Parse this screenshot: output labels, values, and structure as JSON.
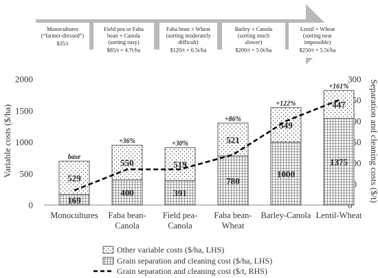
{
  "banner": {
    "boxes": [
      {
        "lines": [
          "Monocultures",
          "(“farmer-dressed”)"
        ],
        "cost": "$35/t"
      },
      {
        "lines": [
          "Field pea or Faba",
          "bean + Canola",
          "(sorting easy)"
        ],
        "cost": "$85/t × 4.7t/ha"
      },
      {
        "lines": [
          "Faba bean + Wheat",
          "(sorting moderately",
          "difficult)"
        ],
        "cost": "$120/t × 6.5t/ha"
      },
      {
        "lines": [
          "Barley + Canola",
          "(sorting much",
          "slower)"
        ],
        "cost": "$200/t × 5.0t/ha"
      },
      {
        "lines": [
          "Lentil + Wheat",
          "(sorting near",
          "impossible)"
        ],
        "cost": "$250/t × 5.5t/ha"
      }
    ]
  },
  "chart_data": {
    "type": "bar",
    "stacked": true,
    "categories": [
      [
        "Monocultures"
      ],
      [
        "Faba bean-",
        "Canola"
      ],
      [
        "Field pea-",
        "Canola"
      ],
      [
        "Faba bean-",
        "Wheat"
      ],
      [
        "Barley-Canola"
      ],
      [
        "Lentil-Wheat"
      ]
    ],
    "series": [
      {
        "name": "Grain separation and cleaning cost ($/ha, LHS)",
        "values": [
          169,
          400,
          391,
          780,
          1000,
          1375
        ],
        "labels": [
          "169",
          "400",
          "391",
          "780",
          "1000",
          "1375"
        ],
        "pattern": "grid"
      },
      {
        "name": "Other variable costs ($/ha, LHS)",
        "values": [
          529,
          550,
          519,
          521,
          549,
          447
        ],
        "labels": [
          "529",
          "550",
          "519",
          "521",
          "549",
          "447"
        ],
        "pattern": "dots"
      }
    ],
    "line_series": {
      "name": "Grain separation and cleaning cost ($/t, RHS)",
      "values": [
        35,
        85,
        85,
        120,
        200,
        250
      ],
      "style": "dashed"
    },
    "top_labels": [
      "base",
      "+36%",
      "+30%",
      "+86%",
      "+122%",
      "+161%"
    ],
    "ylabel": "Variable costs ($/ha)",
    "ylabel_right": "Separation and cleaning costs ($/t)",
    "ylim": [
      0,
      2000
    ],
    "ylim_right": [
      0,
      300
    ],
    "yticks": [
      "0",
      "500",
      "1000",
      "1500",
      "2000"
    ],
    "yticks_right": [
      "0",
      "50",
      "100",
      "150",
      "200",
      "250",
      "300"
    ],
    "grid": false,
    "legend_position": "bottom"
  }
}
